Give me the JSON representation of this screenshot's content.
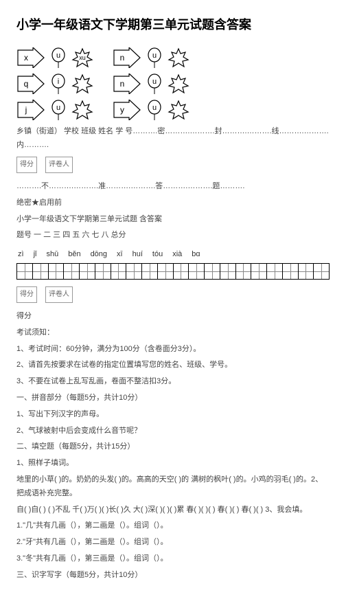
{
  "title": "小学一年级语文下学期第三单元试题含答案",
  "diagram": {
    "rows": [
      {
        "left": [
          "x",
          "u",
          "xu"
        ],
        "right": [
          "n",
          "u",
          ""
        ]
      },
      {
        "left": [
          "q",
          "i",
          ""
        ],
        "right": [
          "n",
          "u",
          ""
        ]
      },
      {
        "left": [
          "j",
          "u",
          ""
        ],
        "right": [
          "y",
          "u",
          ""
        ]
      }
    ]
  },
  "line_info": "乡镇（街道）  学校 班级 姓名 学 号……….密……….……….封……….……….线……….……….内……….",
  "boxrow1": {
    "a": "得分",
    "b": "评卷人"
  },
  "dashline": "……….不……….……….准……….……….答……….……….题……….",
  "secret": "绝密★启用前",
  "subtitle": "小学一年级语文下学期第三单元试题 含答案",
  "tihao": "题号 一 二 三 四 五 六 七 八 总分",
  "pinyin": [
    "zì",
    "jǐ",
    "shū",
    "běn",
    "dōnɡ",
    "xī",
    "huí",
    "tóu",
    "xià",
    "bɑ"
  ],
  "boxrow2": {
    "a": "得分",
    "b": "评卷人"
  },
  "defen": "得分",
  "lines": [
    "考试须知：",
    "1、考试时间：60分钟，满分为100分（含卷面分3分）。",
    "2、请首先按要求在试卷的指定位置填写您的姓名、班级、学号。",
    "3、不要在试卷上乱写乱画，卷面不整洁扣3分。",
    "一、拼音部分（每题5分，共计10分）",
    "1、写出下列汉字的声母。",
    "2、气球被射中后会变成什么音节呢？",
    "二、填空题（每题5分，共计15分）",
    "1、照样子填词。",
    "地里的小草( )的。奶奶的头发( )的。高高的天空( )的 满树的枫叶( )的。小鸡的羽毛( )的。2、把成语补充完整。",
    "自( )自( ) ( )不乱 千( )万( )( )长( )久 大( )深( )( )( )累 春( )( )( ) 春( )( ) 春( )( ) 3、我会填。",
    "1.\"几\"共有几画（），第二画是（）。组词（）。",
    "2.\"牙\"共有几画（），第二画是（）。组词（）。",
    "3.\"冬\"共有几画（），第三画是（）。组词（）。",
    "三、识字写字（每题5分，共计10分）"
  ]
}
